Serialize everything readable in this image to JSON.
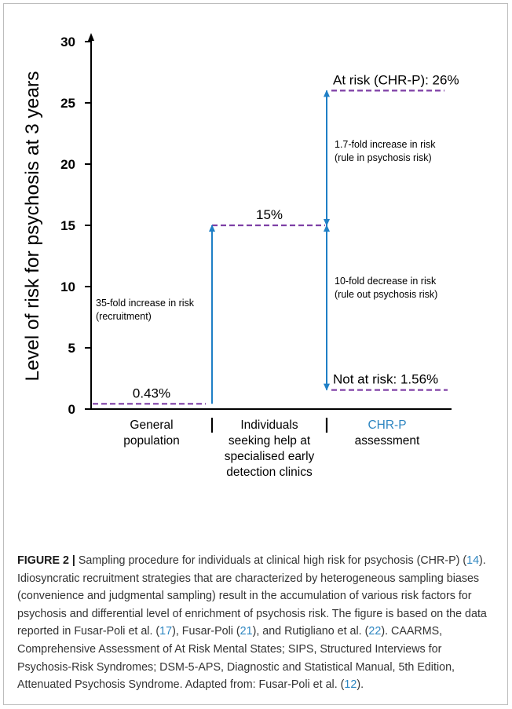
{
  "colors": {
    "dashed_line": "#7e3fa5",
    "arrow": "#1f7fc6",
    "axis": "#000000",
    "chrp_label": "#2e86c1",
    "caption_link": "#2e86c1"
  },
  "chart_data": {
    "type": "line",
    "ylabel": "Level of risk for psychosis at 3 years",
    "ylim": [
      0,
      30
    ],
    "yticks": [
      0,
      5,
      10,
      15,
      20,
      25,
      30
    ],
    "categories": [
      [
        "General",
        "population"
      ],
      [
        "Individuals",
        "seeking help at",
        "specialised early",
        "detection clinics"
      ],
      [
        "CHR-P",
        "assessment"
      ]
    ],
    "levels": [
      {
        "name": "general",
        "value": 0.43,
        "label": "0.43%",
        "x_start": 0,
        "x_end": 1
      },
      {
        "name": "help-seeking",
        "value": 15,
        "label": "15%",
        "x_start": 1,
        "x_end": 2
      },
      {
        "name": "at-risk",
        "value": 26,
        "label": "At risk (CHR-P): 26%",
        "x_start": 2,
        "x_end": 3
      },
      {
        "name": "not-at-risk",
        "value": 1.56,
        "label": "Not at risk: 1.56%",
        "x_start": 2,
        "x_end": 3
      }
    ],
    "arrows": [
      {
        "name": "recruitment",
        "from": 0.43,
        "to": 15,
        "double": false,
        "text": [
          "35-fold increase in risk",
          "(recruitment)"
        ]
      },
      {
        "name": "rule-in",
        "from": 15,
        "to": 26,
        "double": true,
        "text": [
          "1.7-fold increase in risk",
          "(rule in psychosis risk)"
        ]
      },
      {
        "name": "rule-out",
        "from": 15,
        "to": 1.56,
        "double": true,
        "text": [
          "10-fold decrease in risk",
          "(rule out psychosis risk)"
        ]
      }
    ]
  },
  "caption": {
    "label": "FIGURE 2 |",
    "segments": [
      {
        "text": " Sampling procedure for individuals at clinical high risk for psychosis (CHR-P) (",
        "link": false
      },
      {
        "text": "14",
        "link": true
      },
      {
        "text": "). Idiosyncratic recruitment strategies that are characterized by heterogeneous sampling biases (convenience and judgmental sampling) result in the accumulation of various risk factors for psychosis and differential level of enrichment of psychosis risk. The figure is based on the data reported in Fusar-Poli et al. (",
        "link": false
      },
      {
        "text": "17",
        "link": true
      },
      {
        "text": "), Fusar-Poli (",
        "link": false
      },
      {
        "text": "21",
        "link": true
      },
      {
        "text": "), and Rutigliano et al. (",
        "link": false
      },
      {
        "text": "22",
        "link": true
      },
      {
        "text": "). CAARMS, Comprehensive Assessment of At Risk Mental States; SIPS, Structured Interviews for Psychosis-Risk Syndromes; DSM-5-APS, Diagnostic and Statistical Manual, 5th Edition, Attenuated Psychosis Syndrome. Adapted from: Fusar-Poli et al. (",
        "link": false
      },
      {
        "text": "12",
        "link": true
      },
      {
        "text": ").",
        "link": false
      }
    ]
  }
}
